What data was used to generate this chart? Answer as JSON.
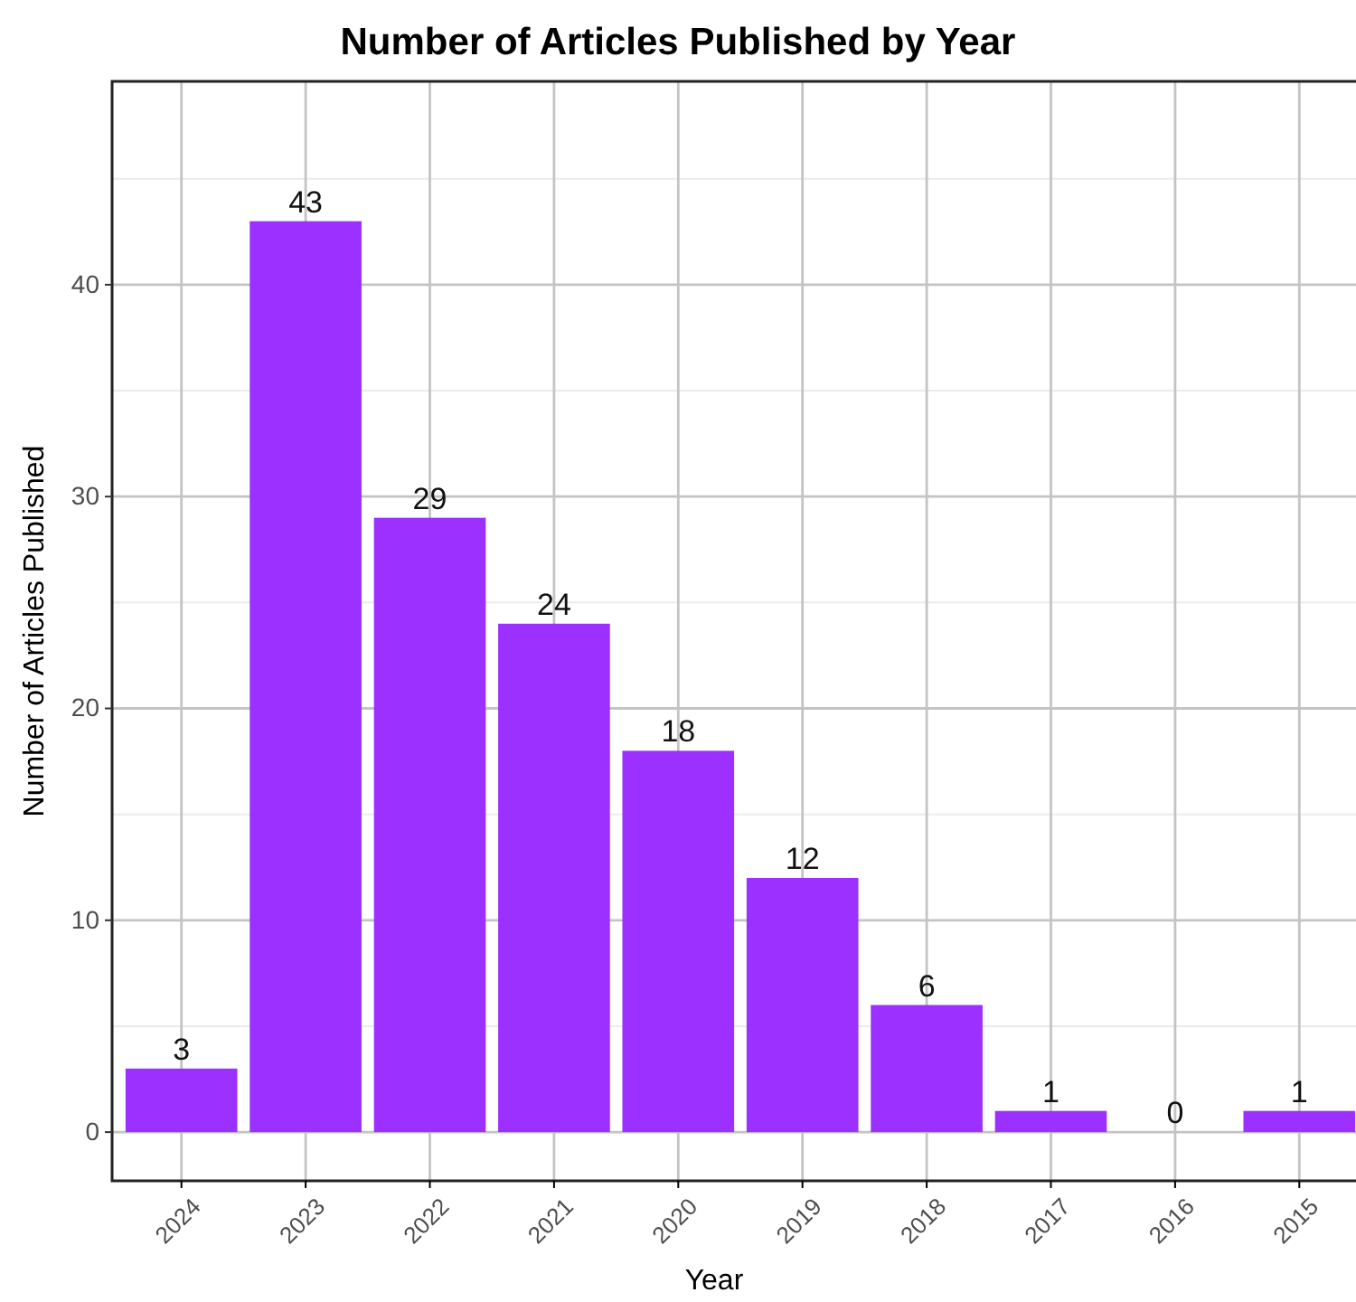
{
  "chart_data": {
    "type": "bar",
    "title": "Number of Articles Published by Year",
    "xlabel": "Year",
    "ylabel": "Number of Articles Published",
    "categories": [
      "2024",
      "2023",
      "2022",
      "2021",
      "2020",
      "2019",
      "2018",
      "2017",
      "2016",
      "2015"
    ],
    "values": [
      3,
      43,
      29,
      24,
      18,
      12,
      6,
      1,
      0,
      1
    ],
    "color": "#9b30ff",
    "ylim": [
      -2.3,
      49.6
    ],
    "yticks": [
      0,
      10,
      20,
      30,
      40
    ],
    "grid": true,
    "data_labels": true
  }
}
